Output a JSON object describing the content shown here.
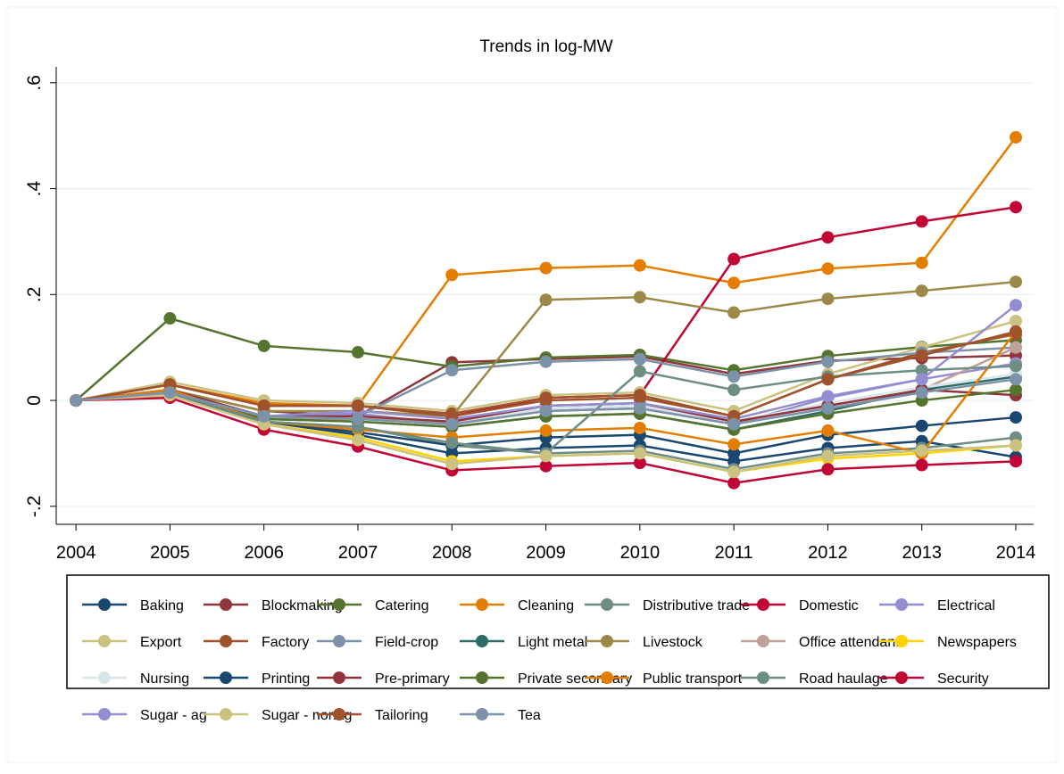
{
  "chart_data": {
    "type": "line",
    "title": "Trends in log-MW",
    "x": [
      2004,
      2005,
      2006,
      2007,
      2008,
      2009,
      2010,
      2011,
      2012,
      2013,
      2014
    ],
    "xlim": [
      2003.79,
      2014.19
    ],
    "xticks": [
      2004,
      2005,
      2006,
      2007,
      2008,
      2009,
      2010,
      2011,
      2012,
      2013,
      2014
    ],
    "ylim": [
      -0.234,
      0.63
    ],
    "yticks": [
      {
        "value": -0.2,
        "label": "-.2"
      },
      0,
      {
        "value": 0.2,
        "label": ".2"
      },
      {
        "value": 0.4,
        "label": ".4"
      },
      {
        "value": 0.6,
        "label": ".6"
      }
    ],
    "grid": true,
    "legend": "bottom",
    "series": [
      {
        "name": "Baking",
        "color": "#1a476f",
        "values": [
          0,
          0.015,
          -0.04,
          -0.065,
          -0.1,
          -0.09,
          -0.085,
          -0.115,
          -0.09,
          -0.077,
          -0.107
        ]
      },
      {
        "name": "Blockmaking",
        "color": "#90353b",
        "values": [
          0,
          0.02,
          -0.02,
          -0.03,
          0.072,
          0.078,
          0.083,
          0.05,
          0.075,
          0.08,
          0.085
        ]
      },
      {
        "name": "Catering",
        "color": "#55752f",
        "values": [
          0,
          0.155,
          0.103,
          0.091,
          0.064,
          0.081,
          0.086,
          0.057,
          0.084,
          0.101,
          0.114
        ]
      },
      {
        "name": "Cleaning",
        "color": "#e37e00",
        "values": [
          0,
          0.03,
          -0.005,
          -0.01,
          0.237,
          0.25,
          0.255,
          0.222,
          0.249,
          0.26,
          0.497
        ]
      },
      {
        "name": "Distributive trade",
        "color": "#6e8e84",
        "values": [
          0,
          0.015,
          -0.04,
          -0.05,
          -0.085,
          -0.1,
          -0.095,
          -0.13,
          -0.1,
          -0.09,
          -0.07
        ]
      },
      {
        "name": "Domestic",
        "color": "#c10534",
        "values": [
          0,
          0.03,
          -0.01,
          -0.01,
          -0.03,
          0.005,
          0.01,
          0.267,
          0.308,
          0.338,
          0.365
        ]
      },
      {
        "name": "Electrical",
        "color": "#938dd2",
        "values": [
          0,
          0.015,
          -0.03,
          -0.025,
          -0.045,
          -0.02,
          -0.015,
          -0.045,
          0.005,
          0.04,
          0.07
        ]
      },
      {
        "name": "Export",
        "color": "#cac27e",
        "values": [
          0,
          0.035,
          0,
          -0.005,
          -0.02,
          0.01,
          0.015,
          -0.02,
          0.05,
          0.1,
          0.15
        ]
      },
      {
        "name": "Factory",
        "color": "#a0522d",
        "values": [
          0,
          0.03,
          -0.01,
          -0.01,
          -0.025,
          0.005,
          0.01,
          -0.03,
          0.04,
          0.09,
          0.125
        ]
      },
      {
        "name": "Field-crop",
        "color": "#7b92a8",
        "values": [
          0,
          0.015,
          -0.03,
          -0.03,
          0.057,
          0.073,
          0.078,
          0.045,
          0.073,
          0.09,
          0.1
        ]
      },
      {
        "name": "Light metal",
        "color": "#2d6d66",
        "values": [
          0,
          0.015,
          -0.035,
          -0.04,
          -0.05,
          -0.03,
          -0.025,
          -0.055,
          -0.02,
          0.02,
          0.045
        ]
      },
      {
        "name": "Livestock",
        "color": "#9c8847",
        "values": [
          0,
          0.02,
          -0.02,
          -0.02,
          -0.03,
          0.19,
          0.195,
          0.166,
          0.192,
          0.207,
          0.224
        ]
      },
      {
        "name": "Office attendants",
        "color": "#bfa19c",
        "values": [
          0,
          0.015,
          -0.035,
          -0.035,
          -0.04,
          -0.015,
          -0.01,
          -0.04,
          -0.01,
          0.02,
          0.1
        ]
      },
      {
        "name": "Newspapers",
        "color": "#ffd200",
        "values": [
          0,
          0.01,
          -0.045,
          -0.07,
          -0.115,
          -0.105,
          -0.1,
          -0.135,
          -0.11,
          -0.1,
          -0.085
        ]
      },
      {
        "name": "Nursing",
        "color": "#d9e6eb",
        "values": [
          0,
          0.015,
          -0.03,
          -0.03,
          -0.04,
          -0.015,
          -0.01,
          -0.04,
          -0.005,
          0.025,
          0.05
        ]
      },
      {
        "name": "Printing",
        "color": "#1a476f",
        "values": [
          0,
          0.01,
          -0.04,
          -0.06,
          -0.085,
          -0.07,
          -0.065,
          -0.1,
          -0.065,
          -0.048,
          -0.032
        ]
      },
      {
        "name": "Pre-primary",
        "color": "#90353b",
        "values": [
          0,
          0.02,
          -0.03,
          -0.03,
          -0.04,
          -0.01,
          -0.005,
          -0.04,
          -0.01,
          0.02,
          0.01
        ]
      },
      {
        "name": "Private secondary",
        "color": "#55752f",
        "values": [
          0,
          0.015,
          -0.035,
          -0.04,
          -0.05,
          -0.03,
          -0.025,
          -0.055,
          -0.025,
          0,
          0.02
        ]
      },
      {
        "name": "Public transport",
        "color": "#e37e00",
        "values": [
          0,
          0.02,
          -0.04,
          -0.055,
          -0.07,
          -0.057,
          -0.052,
          -0.083,
          -0.057,
          -0.1,
          0.13
        ]
      },
      {
        "name": "Road haulage",
        "color": "#6e8e84",
        "values": [
          0,
          0.015,
          -0.04,
          -0.05,
          -0.08,
          -0.1,
          0.055,
          0.02,
          0.045,
          0.057,
          0.065
        ]
      },
      {
        "name": "Security",
        "color": "#c10534",
        "values": [
          0,
          0.005,
          -0.055,
          -0.087,
          -0.132,
          -0.124,
          -0.118,
          -0.156,
          -0.13,
          -0.122,
          -0.115
        ]
      },
      {
        "name": "Sugar - ag",
        "color": "#938dd2",
        "values": [
          0,
          0.015,
          -0.03,
          -0.02,
          -0.035,
          -0.01,
          -0.005,
          -0.035,
          0.008,
          0.04,
          0.18
        ]
      },
      {
        "name": "Sugar - nonag",
        "color": "#cac27e",
        "values": [
          0,
          0.01,
          -0.045,
          -0.075,
          -0.12,
          -0.105,
          -0.1,
          -0.135,
          -0.105,
          -0.095,
          -0.085
        ]
      },
      {
        "name": "Tailoring",
        "color": "#a0522d",
        "values": [
          0,
          0.03,
          -0.01,
          -0.01,
          -0.03,
          0,
          0.005,
          -0.03,
          0.04,
          0.085,
          0.13
        ]
      },
      {
        "name": "Tea",
        "color": "#7b92a8",
        "values": [
          0,
          0.015,
          -0.03,
          -0.035,
          -0.045,
          -0.02,
          -0.015,
          -0.045,
          -0.015,
          0.015,
          0.04
        ]
      }
    ]
  }
}
